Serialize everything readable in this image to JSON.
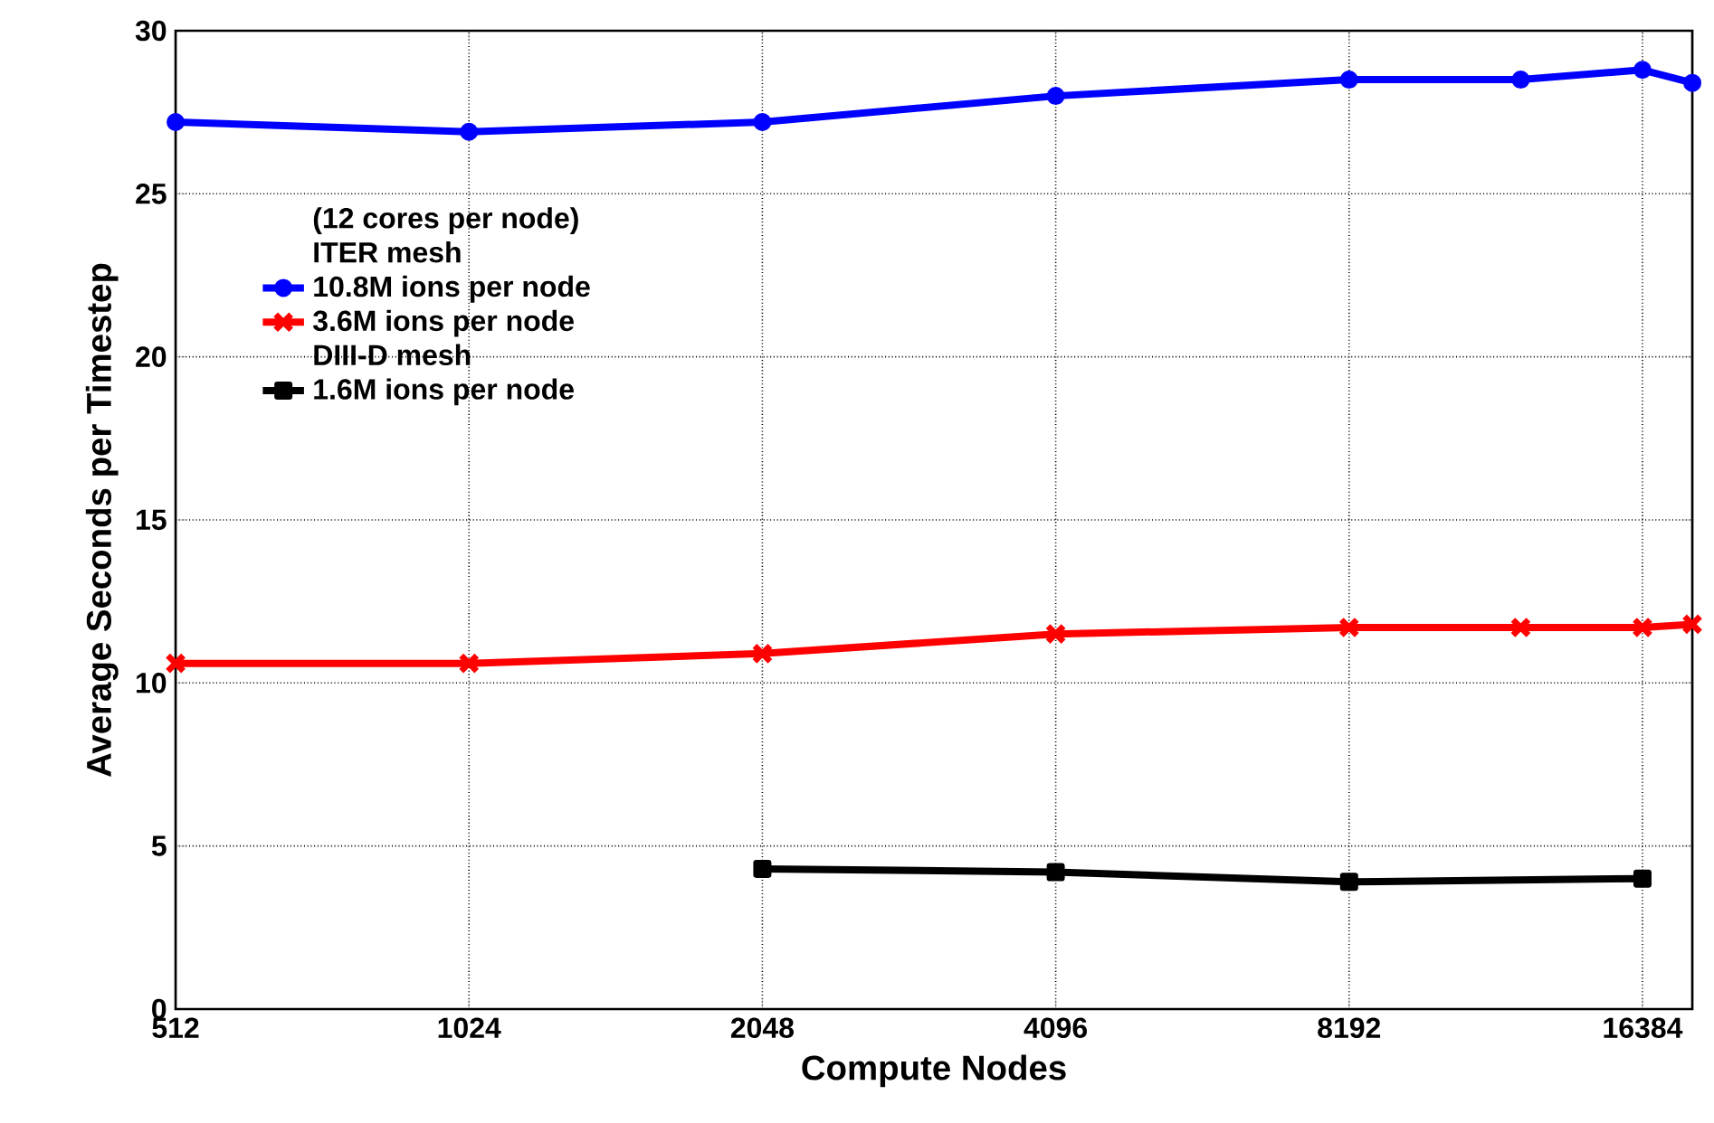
{
  "chart_data": {
    "type": "line",
    "xlabel": "Compute Nodes",
    "ylabel": "Average Seconds per Timestep",
    "legend_title": "(12 cores per node)",
    "annotations": [
      "ITER mesh",
      "DIII-D mesh"
    ],
    "log": "x",
    "grid": true,
    "legend": "top left",
    "xlim": [
      512,
      18432
    ],
    "ylim": [
      0,
      30
    ],
    "xticks": [
      512,
      1024,
      2048,
      4096,
      8192,
      16384
    ],
    "yticks": [
      0,
      5,
      10,
      15,
      20,
      25,
      30
    ],
    "series": [
      {
        "name": "10.8M ions per node",
        "color": "#0000ff",
        "marker": "circle",
        "x": [
          512,
          1024,
          2048,
          4096,
          8192,
          12288,
          16384,
          18432
        ],
        "values": [
          27.2,
          26.9,
          27.2,
          28.0,
          28.5,
          28.5,
          28.8,
          28.4
        ]
      },
      {
        "name": "3.6M ions per node",
        "color": "#ff0000",
        "marker": "cross",
        "x": [
          512,
          1024,
          2048,
          4096,
          8192,
          12288,
          16384,
          18432
        ],
        "values": [
          10.6,
          10.6,
          10.9,
          11.5,
          11.7,
          11.7,
          11.7,
          11.8
        ]
      },
      {
        "name": "1.6M ions per node",
        "color": "#000000",
        "marker": "square",
        "x": [
          2048,
          4096,
          8192,
          16384
        ],
        "values": [
          4.3,
          4.2,
          3.9,
          4.0
        ]
      }
    ]
  }
}
